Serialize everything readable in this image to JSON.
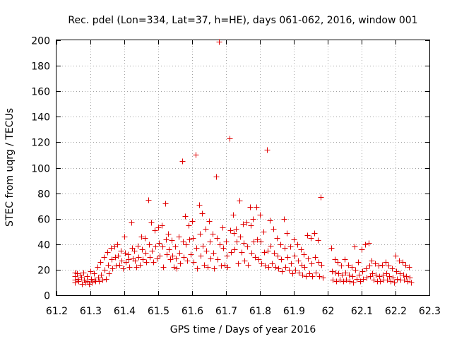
{
  "chart_data": {
    "type": "scatter",
    "title": "Rec. pdel (Lon=334, Lat=37, h=HE), days 061-062, 2016, window 001",
    "xlabel": "GPS time / Days of year 2016",
    "ylabel": "STEC from uqrg / TECUs",
    "xlim": [
      61.2,
      62.3
    ],
    "ylim": [
      0,
      200
    ],
    "xticks": [
      61.2,
      61.3,
      61.4,
      61.5,
      61.6,
      61.7,
      61.8,
      61.9,
      62,
      62.1,
      62.2,
      62.3
    ],
    "xtick_labels": [
      "61.2",
      "61.3",
      "61.4",
      "61.5",
      "61.6",
      "61.7",
      "61.8",
      "61.9",
      "62",
      "62.1",
      "62.2",
      "62.3"
    ],
    "yticks": [
      0,
      20,
      40,
      60,
      80,
      100,
      120,
      140,
      160,
      180,
      200
    ],
    "ytick_labels": [
      "0",
      "20",
      "40",
      "60",
      "80",
      "100",
      "120",
      "140",
      "160",
      "180",
      "200"
    ],
    "grid": true,
    "marker": "plus",
    "marker_color": "#e00000",
    "series": [
      {
        "name": "STEC",
        "points": [
          [
            61.255,
            18
          ],
          [
            61.255,
            15
          ],
          [
            61.255,
            12
          ],
          [
            61.255,
            10
          ],
          [
            61.26,
            17
          ],
          [
            61.262,
            13
          ],
          [
            61.265,
            11
          ],
          [
            61.27,
            16
          ],
          [
            61.272,
            14
          ],
          [
            61.275,
            9
          ],
          [
            61.28,
            18
          ],
          [
            61.282,
            12
          ],
          [
            61.285,
            10
          ],
          [
            61.29,
            15
          ],
          [
            61.292,
            11
          ],
          [
            61.295,
            9
          ],
          [
            61.3,
            19
          ],
          [
            61.302,
            13
          ],
          [
            61.305,
            10
          ],
          [
            61.31,
            17
          ],
          [
            61.312,
            12
          ],
          [
            61.315,
            11
          ],
          [
            61.32,
            22
          ],
          [
            61.322,
            14
          ],
          [
            61.325,
            11
          ],
          [
            61.33,
            26
          ],
          [
            61.332,
            16
          ],
          [
            61.335,
            12
          ],
          [
            61.34,
            30
          ],
          [
            61.342,
            20
          ],
          [
            61.345,
            13
          ],
          [
            61.35,
            34
          ],
          [
            61.352,
            24
          ],
          [
            61.355,
            17
          ],
          [
            61.36,
            37
          ],
          [
            61.362,
            28
          ],
          [
            61.365,
            21
          ],
          [
            61.37,
            38
          ],
          [
            61.372,
            30
          ],
          [
            61.375,
            23
          ],
          [
            61.38,
            40
          ],
          [
            61.382,
            31
          ],
          [
            61.385,
            24
          ],
          [
            61.39,
            35
          ],
          [
            61.392,
            27
          ],
          [
            61.395,
            21
          ],
          [
            61.4,
            46
          ],
          [
            61.402,
            33
          ],
          [
            61.405,
            26
          ],
          [
            61.41,
            32
          ],
          [
            61.412,
            28
          ],
          [
            61.415,
            22
          ],
          [
            61.42,
            57
          ],
          [
            61.422,
            37
          ],
          [
            61.425,
            29
          ],
          [
            61.43,
            35
          ],
          [
            61.432,
            27
          ],
          [
            61.435,
            22
          ],
          [
            61.44,
            39
          ],
          [
            61.442,
            30
          ],
          [
            61.445,
            24
          ],
          [
            61.45,
            46
          ],
          [
            61.452,
            36
          ],
          [
            61.455,
            28
          ],
          [
            61.46,
            45
          ],
          [
            61.462,
            33
          ],
          [
            61.465,
            26
          ],
          [
            61.47,
            75
          ],
          [
            61.472,
            40
          ],
          [
            61.475,
            30
          ],
          [
            61.48,
            57
          ],
          [
            61.482,
            35
          ],
          [
            61.485,
            26
          ],
          [
            61.49,
            51
          ],
          [
            61.492,
            38
          ],
          [
            61.495,
            29
          ],
          [
            61.5,
            53
          ],
          [
            61.502,
            41
          ],
          [
            61.505,
            31
          ],
          [
            61.51,
            55
          ],
          [
            61.512,
            38
          ],
          [
            61.515,
            22
          ],
          [
            61.52,
            72
          ],
          [
            61.522,
            44
          ],
          [
            61.525,
            32
          ],
          [
            61.53,
            48
          ],
          [
            61.532,
            36
          ],
          [
            61.535,
            28
          ],
          [
            61.54,
            43
          ],
          [
            61.542,
            31
          ],
          [
            61.545,
            22
          ],
          [
            61.55,
            38
          ],
          [
            61.552,
            29
          ],
          [
            61.555,
            21
          ],
          [
            61.56,
            46
          ],
          [
            61.562,
            33
          ],
          [
            61.565,
            25
          ],
          [
            61.57,
            105
          ],
          [
            61.572,
            42
          ],
          [
            61.575,
            30
          ],
          [
            61.58,
            62
          ],
          [
            61.582,
            40
          ],
          [
            61.585,
            27
          ],
          [
            61.59,
            55
          ],
          [
            61.592,
            44
          ],
          [
            61.595,
            32
          ],
          [
            61.6,
            58
          ],
          [
            61.602,
            45
          ],
          [
            61.605,
            26
          ],
          [
            61.61,
            110
          ],
          [
            61.612,
            37
          ],
          [
            61.615,
            21
          ],
          [
            61.62,
            71
          ],
          [
            61.622,
            48
          ],
          [
            61.625,
            31
          ],
          [
            61.63,
            64
          ],
          [
            61.632,
            39
          ],
          [
            61.635,
            24
          ],
          [
            61.64,
            52
          ],
          [
            61.642,
            35
          ],
          [
            61.645,
            22
          ],
          [
            61.65,
            58
          ],
          [
            61.652,
            42
          ],
          [
            61.655,
            29
          ],
          [
            61.66,
            48
          ],
          [
            61.662,
            33
          ],
          [
            61.665,
            21
          ],
          [
            61.67,
            93
          ],
          [
            61.672,
            45
          ],
          [
            61.675,
            28
          ],
          [
            61.68,
            199
          ],
          [
            61.682,
            40
          ],
          [
            61.685,
            23
          ],
          [
            61.69,
            53
          ],
          [
            61.692,
            37
          ],
          [
            61.695,
            24
          ],
          [
            61.7,
            42
          ],
          [
            61.702,
            31
          ],
          [
            61.705,
            22
          ],
          [
            61.71,
            123
          ],
          [
            61.712,
            51
          ],
          [
            61.715,
            34
          ],
          [
            61.72,
            63
          ],
          [
            61.722,
            49
          ],
          [
            61.725,
            36
          ],
          [
            61.73,
            52
          ],
          [
            61.732,
            42
          ],
          [
            61.735,
            25
          ],
          [
            61.74,
            74
          ],
          [
            61.742,
            46
          ],
          [
            61.745,
            34
          ],
          [
            61.75,
            56
          ],
          [
            61.752,
            41
          ],
          [
            61.755,
            27
          ],
          [
            61.76,
            57
          ],
          [
            61.762,
            38
          ],
          [
            61.765,
            24
          ],
          [
            61.77,
            69
          ],
          [
            61.772,
            55
          ],
          [
            61.775,
            33
          ],
          [
            61.78,
            60
          ],
          [
            61.782,
            42
          ],
          [
            61.785,
            30
          ],
          [
            61.79,
            69
          ],
          [
            61.792,
            44
          ],
          [
            61.795,
            28
          ],
          [
            61.8,
            63
          ],
          [
            61.802,
            42
          ],
          [
            61.805,
            25
          ],
          [
            61.81,
            50
          ],
          [
            61.812,
            34
          ],
          [
            61.815,
            23
          ],
          [
            61.82,
            114
          ],
          [
            61.822,
            35
          ],
          [
            61.825,
            22
          ],
          [
            61.83,
            59
          ],
          [
            61.832,
            39
          ],
          [
            61.835,
            25
          ],
          [
            61.84,
            52
          ],
          [
            61.842,
            33
          ],
          [
            61.845,
            22
          ],
          [
            61.85,
            45
          ],
          [
            61.852,
            31
          ],
          [
            61.855,
            21
          ],
          [
            61.86,
            40
          ],
          [
            61.862,
            28
          ],
          [
            61.865,
            19
          ],
          [
            61.87,
            60
          ],
          [
            61.872,
            37
          ],
          [
            61.875,
            22
          ],
          [
            61.88,
            49
          ],
          [
            61.882,
            30
          ],
          [
            61.885,
            20
          ],
          [
            61.89,
            38
          ],
          [
            61.892,
            25
          ],
          [
            61.895,
            17
          ],
          [
            61.9,
            44
          ],
          [
            61.902,
            31
          ],
          [
            61.905,
            20
          ],
          [
            61.91,
            40
          ],
          [
            61.912,
            27
          ],
          [
            61.915,
            18
          ],
          [
            61.92,
            36
          ],
          [
            61.922,
            24
          ],
          [
            61.925,
            16
          ],
          [
            61.93,
            32
          ],
          [
            61.932,
            22
          ],
          [
            61.935,
            15
          ],
          [
            61.94,
            47
          ],
          [
            61.942,
            29
          ],
          [
            61.945,
            17
          ],
          [
            61.95,
            45
          ],
          [
            61.952,
            25
          ],
          [
            61.955,
            15
          ],
          [
            61.96,
            49
          ],
          [
            61.962,
            30
          ],
          [
            61.965,
            18
          ],
          [
            61.97,
            43
          ],
          [
            61.972,
            26
          ],
          [
            61.975,
            15
          ],
          [
            61.98,
            77
          ],
          [
            61.982,
            24
          ],
          [
            61.985,
            14
          ],
          [
            62.01,
            37
          ],
          [
            62.012,
            19
          ],
          [
            62.015,
            12
          ],
          [
            62.02,
            28
          ],
          [
            62.022,
            18
          ],
          [
            62.025,
            11
          ],
          [
            62.03,
            26
          ],
          [
            62.032,
            17
          ],
          [
            62.035,
            12
          ],
          [
            62.04,
            23
          ],
          [
            62.042,
            16
          ],
          [
            62.045,
            11
          ],
          [
            62.05,
            28
          ],
          [
            62.052,
            18
          ],
          [
            62.055,
            12
          ],
          [
            62.06,
            24
          ],
          [
            62.062,
            16
          ],
          [
            62.065,
            11
          ],
          [
            62.07,
            22
          ],
          [
            62.072,
            15
          ],
          [
            62.075,
            10
          ],
          [
            62.08,
            38
          ],
          [
            62.082,
            20
          ],
          [
            62.085,
            13
          ],
          [
            62.09,
            26
          ],
          [
            62.092,
            16
          ],
          [
            62.095,
            11
          ],
          [
            62.1,
            36
          ],
          [
            62.102,
            19
          ],
          [
            62.105,
            13
          ],
          [
            62.11,
            40
          ],
          [
            62.112,
            21
          ],
          [
            62.115,
            14
          ],
          [
            62.12,
            41
          ],
          [
            62.122,
            23
          ],
          [
            62.125,
            15
          ],
          [
            62.13,
            27
          ],
          [
            62.132,
            17
          ],
          [
            62.135,
            12
          ],
          [
            62.14,
            25
          ],
          [
            62.142,
            16
          ],
          [
            62.145,
            11
          ],
          [
            62.15,
            23
          ],
          [
            62.152,
            15
          ],
          [
            62.155,
            11
          ],
          [
            62.16,
            24
          ],
          [
            62.162,
            16
          ],
          [
            62.165,
            12
          ],
          [
            62.17,
            26
          ],
          [
            62.172,
            17
          ],
          [
            62.175,
            12
          ],
          [
            62.18,
            23
          ],
          [
            62.182,
            15
          ],
          [
            62.185,
            11
          ],
          [
            62.19,
            21
          ],
          [
            62.192,
            14
          ],
          [
            62.195,
            10
          ],
          [
            62.2,
            31
          ],
          [
            62.202,
            19
          ],
          [
            62.205,
            13
          ],
          [
            62.21,
            27
          ],
          [
            62.212,
            17
          ],
          [
            62.215,
            12
          ],
          [
            62.22,
            26
          ],
          [
            62.222,
            16
          ],
          [
            62.225,
            12
          ],
          [
            62.23,
            24
          ],
          [
            62.232,
            15
          ],
          [
            62.235,
            11
          ],
          [
            62.24,
            22
          ],
          [
            62.242,
            14
          ],
          [
            62.245,
            10
          ]
        ]
      }
    ]
  }
}
